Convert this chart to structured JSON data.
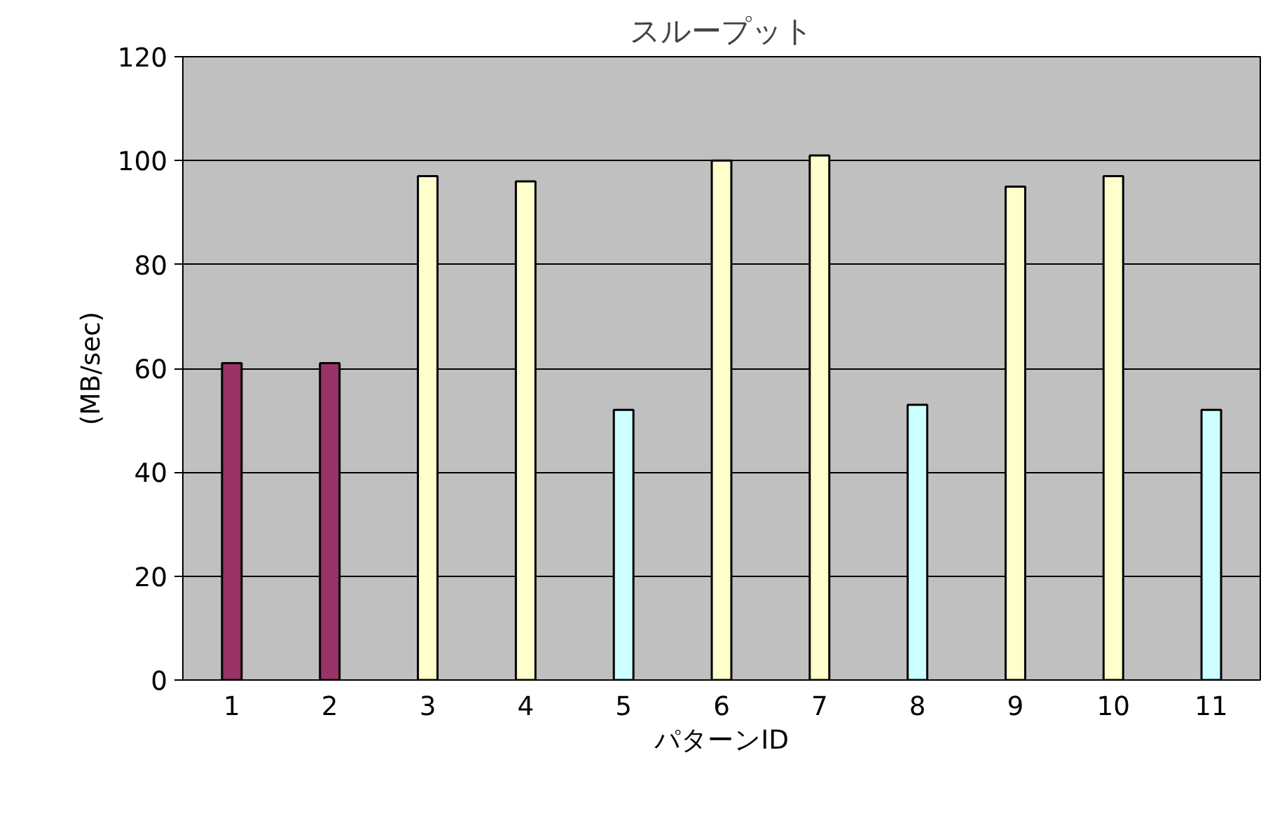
{
  "chart_data": {
    "type": "bar",
    "title": "スループット",
    "xlabel": "パターンID",
    "ylabel": "(MB/sec)",
    "categories": [
      "1",
      "2",
      "3",
      "4",
      "5",
      "6",
      "7",
      "8",
      "9",
      "10",
      "11"
    ],
    "values": [
      61,
      61,
      97,
      96,
      52,
      100,
      101,
      53,
      95,
      97,
      52
    ],
    "colors": [
      "#993366",
      "#993366",
      "#ffffcc",
      "#ffffcc",
      "#ccffff",
      "#ffffcc",
      "#ffffcc",
      "#ccffff",
      "#ffffcc",
      "#ffffcc",
      "#ccffff"
    ],
    "ylim": [
      0,
      120
    ],
    "yticks": [
      0,
      20,
      40,
      60,
      80,
      100,
      120
    ],
    "grid": "y"
  }
}
